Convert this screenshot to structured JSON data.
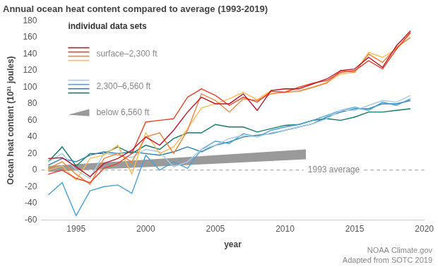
{
  "chart_data": {
    "type": "line",
    "title": "Annual ocean heat content compared to average (1993-2019)",
    "xlabel": "year",
    "ylabel": "Ocean heat content (10²¹ joules)",
    "x": [
      1993,
      1994,
      1995,
      1996,
      1997,
      1998,
      1999,
      2000,
      2001,
      2002,
      2003,
      2004,
      2005,
      2006,
      2007,
      2008,
      2009,
      2010,
      2011,
      2012,
      2013,
      2014,
      2015,
      2016,
      2017,
      2018,
      2019
    ],
    "series": [
      {
        "name": "surface–2,300 ft",
        "color": "#c0162c",
        "values": [
          14,
          15,
          4,
          -8,
          8,
          14,
          24,
          40,
          30,
          48,
          70,
          88,
          80,
          80,
          92,
          72,
          96,
          98,
          98,
          104,
          110,
          120,
          122,
          136,
          124,
          150,
          168
        ]
      },
      {
        "name": "surface–2,300 ft",
        "color": "#e8432b",
        "values": [
          -5,
          0,
          -10,
          -15,
          2,
          8,
          20,
          58,
          60,
          62,
          88,
          98,
          90,
          78,
          88,
          82,
          95,
          94,
          100,
          105,
          108,
          118,
          120,
          132,
          122,
          146,
          166
        ]
      },
      {
        "name": "surface–2,300 ft",
        "color": "#f5813a",
        "values": [
          2,
          10,
          -5,
          -17,
          14,
          20,
          10,
          40,
          45,
          20,
          48,
          92,
          84,
          70,
          86,
          84,
          92,
          94,
          95,
          100,
          105,
          120,
          118,
          140,
          130,
          148,
          160
        ]
      },
      {
        "name": "surface–2,300 ft",
        "color": "#fdbb4f",
        "values": [
          0,
          5,
          -12,
          14,
          18,
          30,
          -5,
          45,
          20,
          28,
          50,
          75,
          80,
          86,
          94,
          85,
          96,
          98,
          96,
          100,
          106,
          116,
          118,
          142,
          136,
          146,
          165
        ]
      },
      {
        "name": "2,300–6,560 ft",
        "color": "#a9cbe4",
        "values": [
          10,
          20,
          0,
          -10,
          20,
          18,
          15,
          25,
          22,
          4,
          10,
          25,
          30,
          38,
          42,
          40,
          45,
          48,
          52,
          56,
          62,
          72,
          72,
          78,
          84,
          82,
          90
        ]
      },
      {
        "name": "2,300–6,560 ft",
        "color": "#4aa3d8",
        "values": [
          -30,
          -15,
          -55,
          -25,
          -20,
          -18,
          -28,
          18,
          0,
          10,
          2,
          25,
          35,
          32,
          44,
          40,
          48,
          52,
          55,
          60,
          66,
          72,
          76,
          72,
          82,
          78,
          86
        ]
      },
      {
        "name": "2,300–6,560 ft",
        "color": "#2a7fb5",
        "values": [
          6,
          14,
          10,
          18,
          22,
          20,
          22,
          20,
          18,
          22,
          28,
          22,
          30,
          34,
          40,
          42,
          44,
          48,
          52,
          56,
          64,
          70,
          74,
          74,
          80,
          80,
          84
        ]
      },
      {
        "name": "2,300–6,560 ft",
        "color": "#137a6b",
        "values": [
          10,
          28,
          5,
          20,
          20,
          28,
          20,
          30,
          25,
          38,
          45,
          45,
          55,
          52,
          52,
          46,
          50,
          54,
          55,
          60,
          62,
          60,
          64,
          70,
          70,
          72,
          74
        ]
      },
      {
        "name": "below 6,560 ft",
        "type": "band",
        "color": "#9a9a9a",
        "x": [
          1993,
          2011.5
        ],
        "values": [
          5,
          25
        ],
        "lower": [
          -2,
          13
        ]
      }
    ],
    "xlim": [
      1992.5,
      2020
    ],
    "xticks": [
      1995,
      2000,
      2005,
      2010,
      2015,
      2020
    ],
    "ylim": [
      -60,
      180
    ],
    "yticks": [
      -60,
      -40,
      -20,
      0,
      20,
      40,
      60,
      80,
      100,
      120,
      140,
      160,
      180
    ],
    "grid": false,
    "legend": "upper left",
    "legend_title": "individual data sets",
    "annotations": [
      {
        "text": "1993 average",
        "x": 2013.5,
        "y": 0,
        "line_style": "dashed"
      }
    ],
    "source": [
      "NOAA Climate.gov",
      "Adapted from SOTC 2019"
    ]
  }
}
